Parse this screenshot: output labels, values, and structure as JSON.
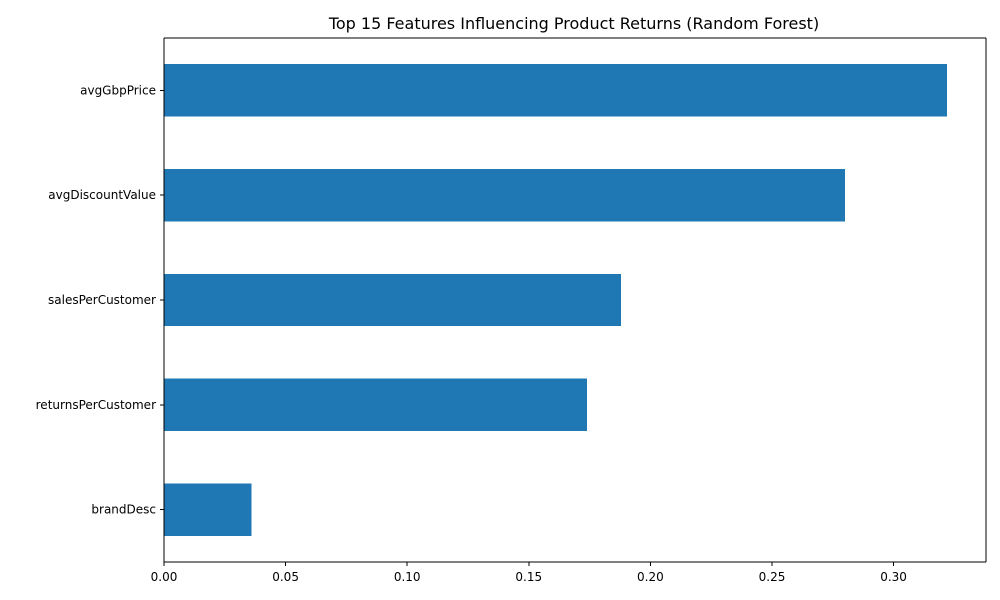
{
  "chart_data": {
    "type": "bar",
    "orientation": "horizontal",
    "title": "Top 15 Features Influencing Product Returns (Random Forest)",
    "xlabel": "",
    "ylabel": "",
    "categories": [
      "avgGbpPrice",
      "avgDiscountValue",
      "salesPerCustomer",
      "returnsPerCustomer",
      "brandDesc"
    ],
    "values": [
      0.322,
      0.28,
      0.188,
      0.174,
      0.036
    ],
    "xlim": [
      0.0,
      0.338
    ],
    "xticks": [
      0.0,
      0.05,
      0.1,
      0.15,
      0.2,
      0.25,
      0.3
    ],
    "xtick_labels": [
      "0.00",
      "0.05",
      "0.10",
      "0.15",
      "0.20",
      "0.25",
      "0.30"
    ],
    "bar_color": "#1f77b4",
    "grid": false,
    "legend": "none"
  }
}
